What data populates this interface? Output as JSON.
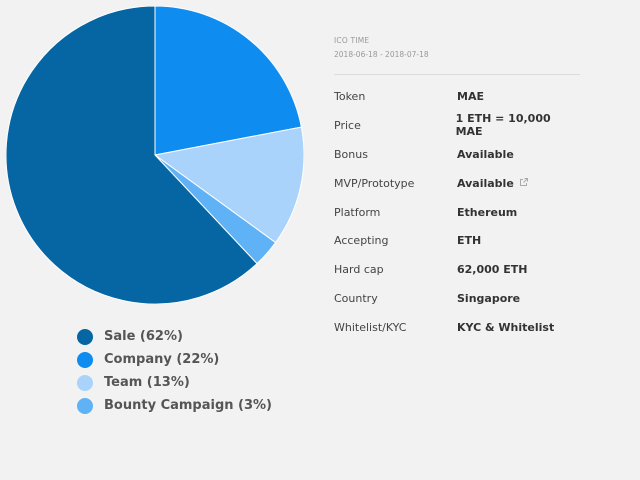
{
  "chart_data": {
    "type": "pie",
    "categories": [
      "Sale (62%)",
      "Company (22%)",
      "Team (13%)",
      "Bounty Campaign (3%)"
    ],
    "values": [
      62,
      22,
      13,
      3
    ],
    "colors": [
      "#0566a3",
      "#0e8cf0",
      "#a9d3fb",
      "#5fb2f6"
    ],
    "legend_position": "bottom"
  },
  "ico": {
    "title": "ICO TIME",
    "dates": "2018-06-18 - 2018-07-18",
    "rows": [
      {
        "key": "Token",
        "value": "MAE"
      },
      {
        "key": "Price",
        "value": "1 ETH = 10,000 MAE"
      },
      {
        "key": "Bonus",
        "value": "Available"
      },
      {
        "key": "MVP/Prototype",
        "value": "Available",
        "icon": "external-link-icon"
      },
      {
        "key": "Platform",
        "value": "Ethereum"
      },
      {
        "key": "Accepting",
        "value": "ETH"
      },
      {
        "key": "Hard cap",
        "value": "62,000 ETH"
      },
      {
        "key": "Country",
        "value": "Singapore"
      },
      {
        "key": "Whitelist/KYC",
        "value": "KYC & Whitelist"
      }
    ]
  }
}
